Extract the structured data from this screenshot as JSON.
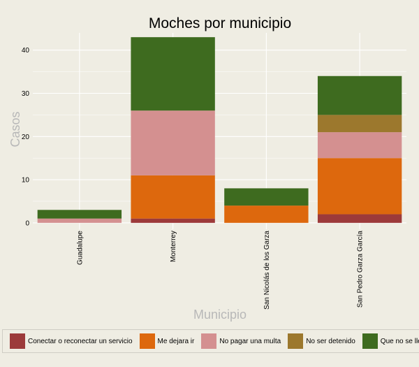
{
  "chart_data": {
    "type": "bar",
    "stacked": true,
    "title": "Moches por municipio",
    "xlabel": "Municipio",
    "ylabel": "Casos",
    "ylim": [
      -1,
      44
    ],
    "yticks": [
      0,
      10,
      20,
      30,
      40
    ],
    "grid": true,
    "legend_position": "bottom",
    "categories": [
      "Guadalupe",
      "Monterrey",
      "San Nicolás de los Garza",
      "San Pedro Garza García"
    ],
    "series": [
      {
        "name": "Conectar o reconectar un servicio",
        "color": "#9c3a3a",
        "values": [
          0,
          1,
          0,
          2
        ]
      },
      {
        "name": "Me dejara ir",
        "color": "#dd680d",
        "values": [
          0,
          10,
          4,
          13
        ]
      },
      {
        "name": "No pagar una multa",
        "color": "#d49090",
        "values": [
          1,
          15,
          0,
          6
        ]
      },
      {
        "name": "No ser detenido",
        "color": "#9c782d",
        "values": [
          0,
          0,
          0,
          4
        ]
      },
      {
        "name": "Que no se llevaran mi carro",
        "color": "#3e6b1f",
        "values": [
          2,
          17,
          4,
          9
        ]
      }
    ]
  }
}
